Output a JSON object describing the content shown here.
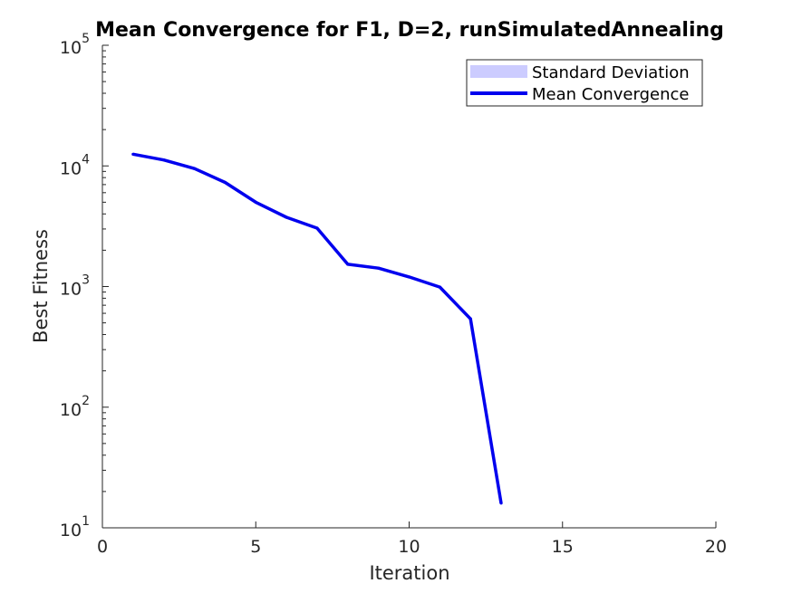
{
  "chart_data": {
    "type": "line",
    "title": "Mean Convergence for F1, D=2, runSimulatedAnnealing",
    "xlabel": "Iteration",
    "ylabel": "Best Fitness",
    "xlim": [
      0,
      20
    ],
    "ylim": [
      10,
      100000
    ],
    "yscale": "log",
    "xticks": [
      "0",
      "5",
      "10",
      "15",
      "20"
    ],
    "yticks": [
      {
        "base": "10",
        "exp": "1"
      },
      {
        "base": "10",
        "exp": "2"
      },
      {
        "base": "10",
        "exp": "3"
      },
      {
        "base": "10",
        "exp": "4"
      },
      {
        "base": "10",
        "exp": "5"
      }
    ],
    "grid": false,
    "legend_position": "top-right",
    "legend": [
      "Standard Deviation",
      "Mean Convergence"
    ],
    "colors": {
      "line": "#0000ee",
      "band": "#ccccff"
    },
    "series": [
      {
        "name": "Mean Convergence",
        "x": [
          1,
          2,
          3,
          4,
          5,
          6,
          7,
          8,
          9,
          10,
          11,
          12,
          13
        ],
        "y": [
          12500,
          11200,
          9500,
          7300,
          5000,
          3750,
          3050,
          1530,
          1420,
          1200,
          990,
          540,
          16
        ]
      }
    ]
  }
}
